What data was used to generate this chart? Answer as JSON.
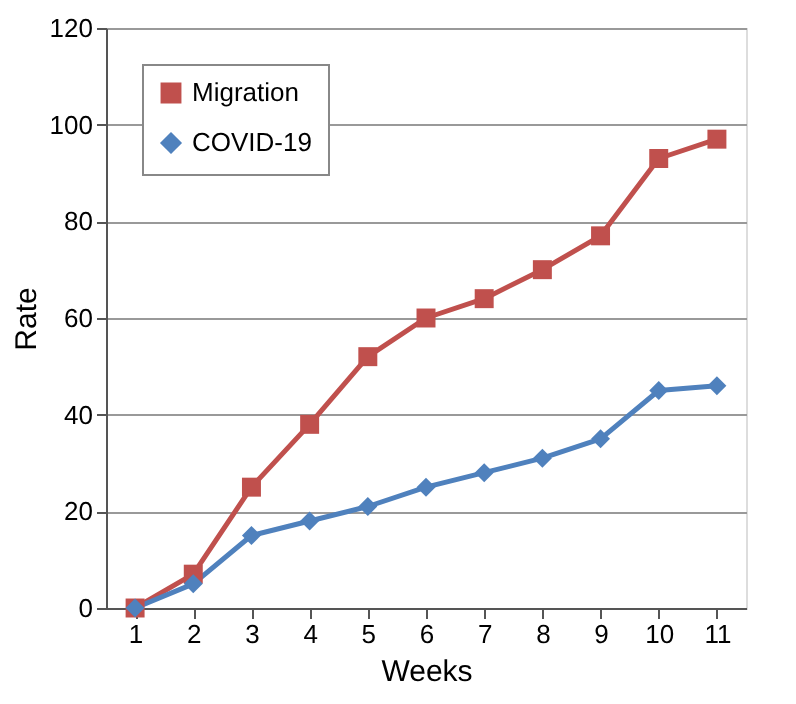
{
  "chart_data": {
    "type": "line",
    "xlabel": "Weeks",
    "ylabel": "Rate",
    "categories": [
      "1",
      "2",
      "3",
      "4",
      "5",
      "6",
      "7",
      "8",
      "9",
      "10",
      "11"
    ],
    "series": [
      {
        "name": "Migration",
        "color": "#c0504d",
        "marker": "square",
        "values": [
          0,
          7,
          25,
          38,
          52,
          60,
          64,
          70,
          77,
          93,
          97
        ]
      },
      {
        "name": "COVID-19",
        "color": "#4f81bd",
        "marker": "diamond",
        "values": [
          0,
          5,
          15,
          18,
          21,
          25,
          28,
          31,
          35,
          45,
          46
        ]
      }
    ],
    "ylim": [
      0,
      120
    ],
    "yticks": [
      0,
      20,
      40,
      60,
      80,
      100,
      120
    ],
    "grid": "y",
    "legend": "top left",
    "line_style": "solid"
  }
}
